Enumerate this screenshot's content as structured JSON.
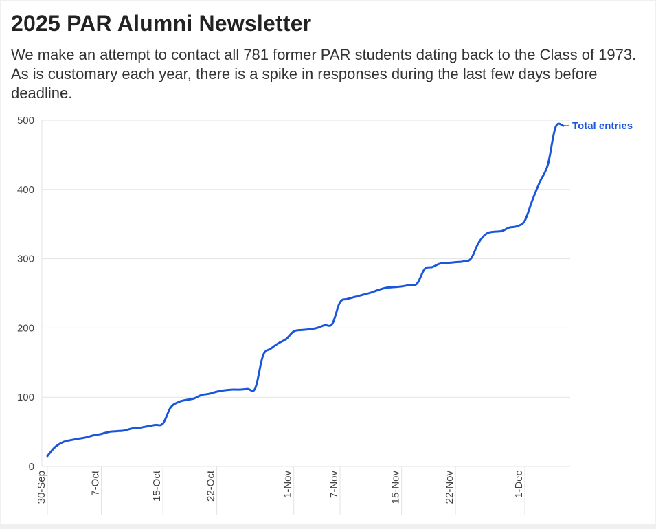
{
  "header": {
    "title": "2025 PAR Alumni Newsletter",
    "subtitle": "We make an attempt to contact all 781 former PAR students dating back to the Class of 1973. As is customary each year, there is a spike in responses during the last few days before deadline."
  },
  "colors": {
    "line": "#1a56db",
    "grid": "#e3e3e3",
    "axis": "#aaaaaa"
  },
  "chart_data": {
    "type": "line",
    "title": "2025 PAR Alumni Newsletter",
    "ylim": [
      0,
      500
    ],
    "yticks": [
      0,
      100,
      200,
      300,
      400,
      500
    ],
    "grid": true,
    "legend": "direct label at line end (right)",
    "xticks": [
      {
        "label": "30-Sep",
        "date": "2025-09-30"
      },
      {
        "label": "7-Oct",
        "date": "2025-10-07"
      },
      {
        "label": "15-Oct",
        "date": "2025-10-15"
      },
      {
        "label": "22-Oct",
        "date": "2025-10-22"
      },
      {
        "label": "1-Nov",
        "date": "2025-11-01"
      },
      {
        "label": "7-Nov",
        "date": "2025-11-07"
      },
      {
        "label": "15-Nov",
        "date": "2025-11-15"
      },
      {
        "label": "22-Nov",
        "date": "2025-11-22"
      },
      {
        "label": "1-Dec",
        "date": "2025-12-01"
      }
    ],
    "series": [
      {
        "name": "Total entries",
        "points": [
          [
            "2025-09-30",
            15
          ],
          [
            "2025-10-01",
            28
          ],
          [
            "2025-10-02",
            35
          ],
          [
            "2025-10-03",
            38
          ],
          [
            "2025-10-04",
            40
          ],
          [
            "2025-10-05",
            42
          ],
          [
            "2025-10-06",
            45
          ],
          [
            "2025-10-07",
            47
          ],
          [
            "2025-10-08",
            50
          ],
          [
            "2025-10-09",
            51
          ],
          [
            "2025-10-10",
            52
          ],
          [
            "2025-10-11",
            55
          ],
          [
            "2025-10-12",
            56
          ],
          [
            "2025-10-13",
            58
          ],
          [
            "2025-10-14",
            60
          ],
          [
            "2025-10-15",
            62
          ],
          [
            "2025-10-16",
            85
          ],
          [
            "2025-10-17",
            93
          ],
          [
            "2025-10-18",
            96
          ],
          [
            "2025-10-19",
            98
          ],
          [
            "2025-10-20",
            103
          ],
          [
            "2025-10-21",
            105
          ],
          [
            "2025-10-22",
            108
          ],
          [
            "2025-10-23",
            110
          ],
          [
            "2025-10-24",
            111
          ],
          [
            "2025-10-25",
            111
          ],
          [
            "2025-10-26",
            112
          ],
          [
            "2025-10-27",
            113
          ],
          [
            "2025-10-28",
            160
          ],
          [
            "2025-10-29",
            170
          ],
          [
            "2025-10-30",
            178
          ],
          [
            "2025-10-31",
            184
          ],
          [
            "2025-11-01",
            195
          ],
          [
            "2025-11-02",
            197
          ],
          [
            "2025-11-03",
            198
          ],
          [
            "2025-11-04",
            200
          ],
          [
            "2025-11-05",
            204
          ],
          [
            "2025-11-06",
            206
          ],
          [
            "2025-11-07",
            237
          ],
          [
            "2025-11-08",
            242
          ],
          [
            "2025-11-09",
            245
          ],
          [
            "2025-11-10",
            248
          ],
          [
            "2025-11-11",
            251
          ],
          [
            "2025-11-12",
            255
          ],
          [
            "2025-11-13",
            258
          ],
          [
            "2025-11-14",
            259
          ],
          [
            "2025-11-15",
            260
          ],
          [
            "2025-11-16",
            262
          ],
          [
            "2025-11-17",
            264
          ],
          [
            "2025-11-18",
            285
          ],
          [
            "2025-11-19",
            288
          ],
          [
            "2025-11-20",
            293
          ],
          [
            "2025-11-21",
            294
          ],
          [
            "2025-11-22",
            295
          ],
          [
            "2025-11-23",
            296
          ],
          [
            "2025-11-24",
            300
          ],
          [
            "2025-11-25",
            323
          ],
          [
            "2025-11-26",
            336
          ],
          [
            "2025-11-27",
            339
          ],
          [
            "2025-11-28",
            340
          ],
          [
            "2025-11-29",
            345
          ],
          [
            "2025-11-30",
            347
          ],
          [
            "2025-12-01",
            355
          ],
          [
            "2025-12-02",
            385
          ],
          [
            "2025-12-03",
            412
          ],
          [
            "2025-12-04",
            436
          ],
          [
            "2025-12-05",
            490
          ],
          [
            "2025-12-06",
            492
          ]
        ]
      }
    ]
  }
}
